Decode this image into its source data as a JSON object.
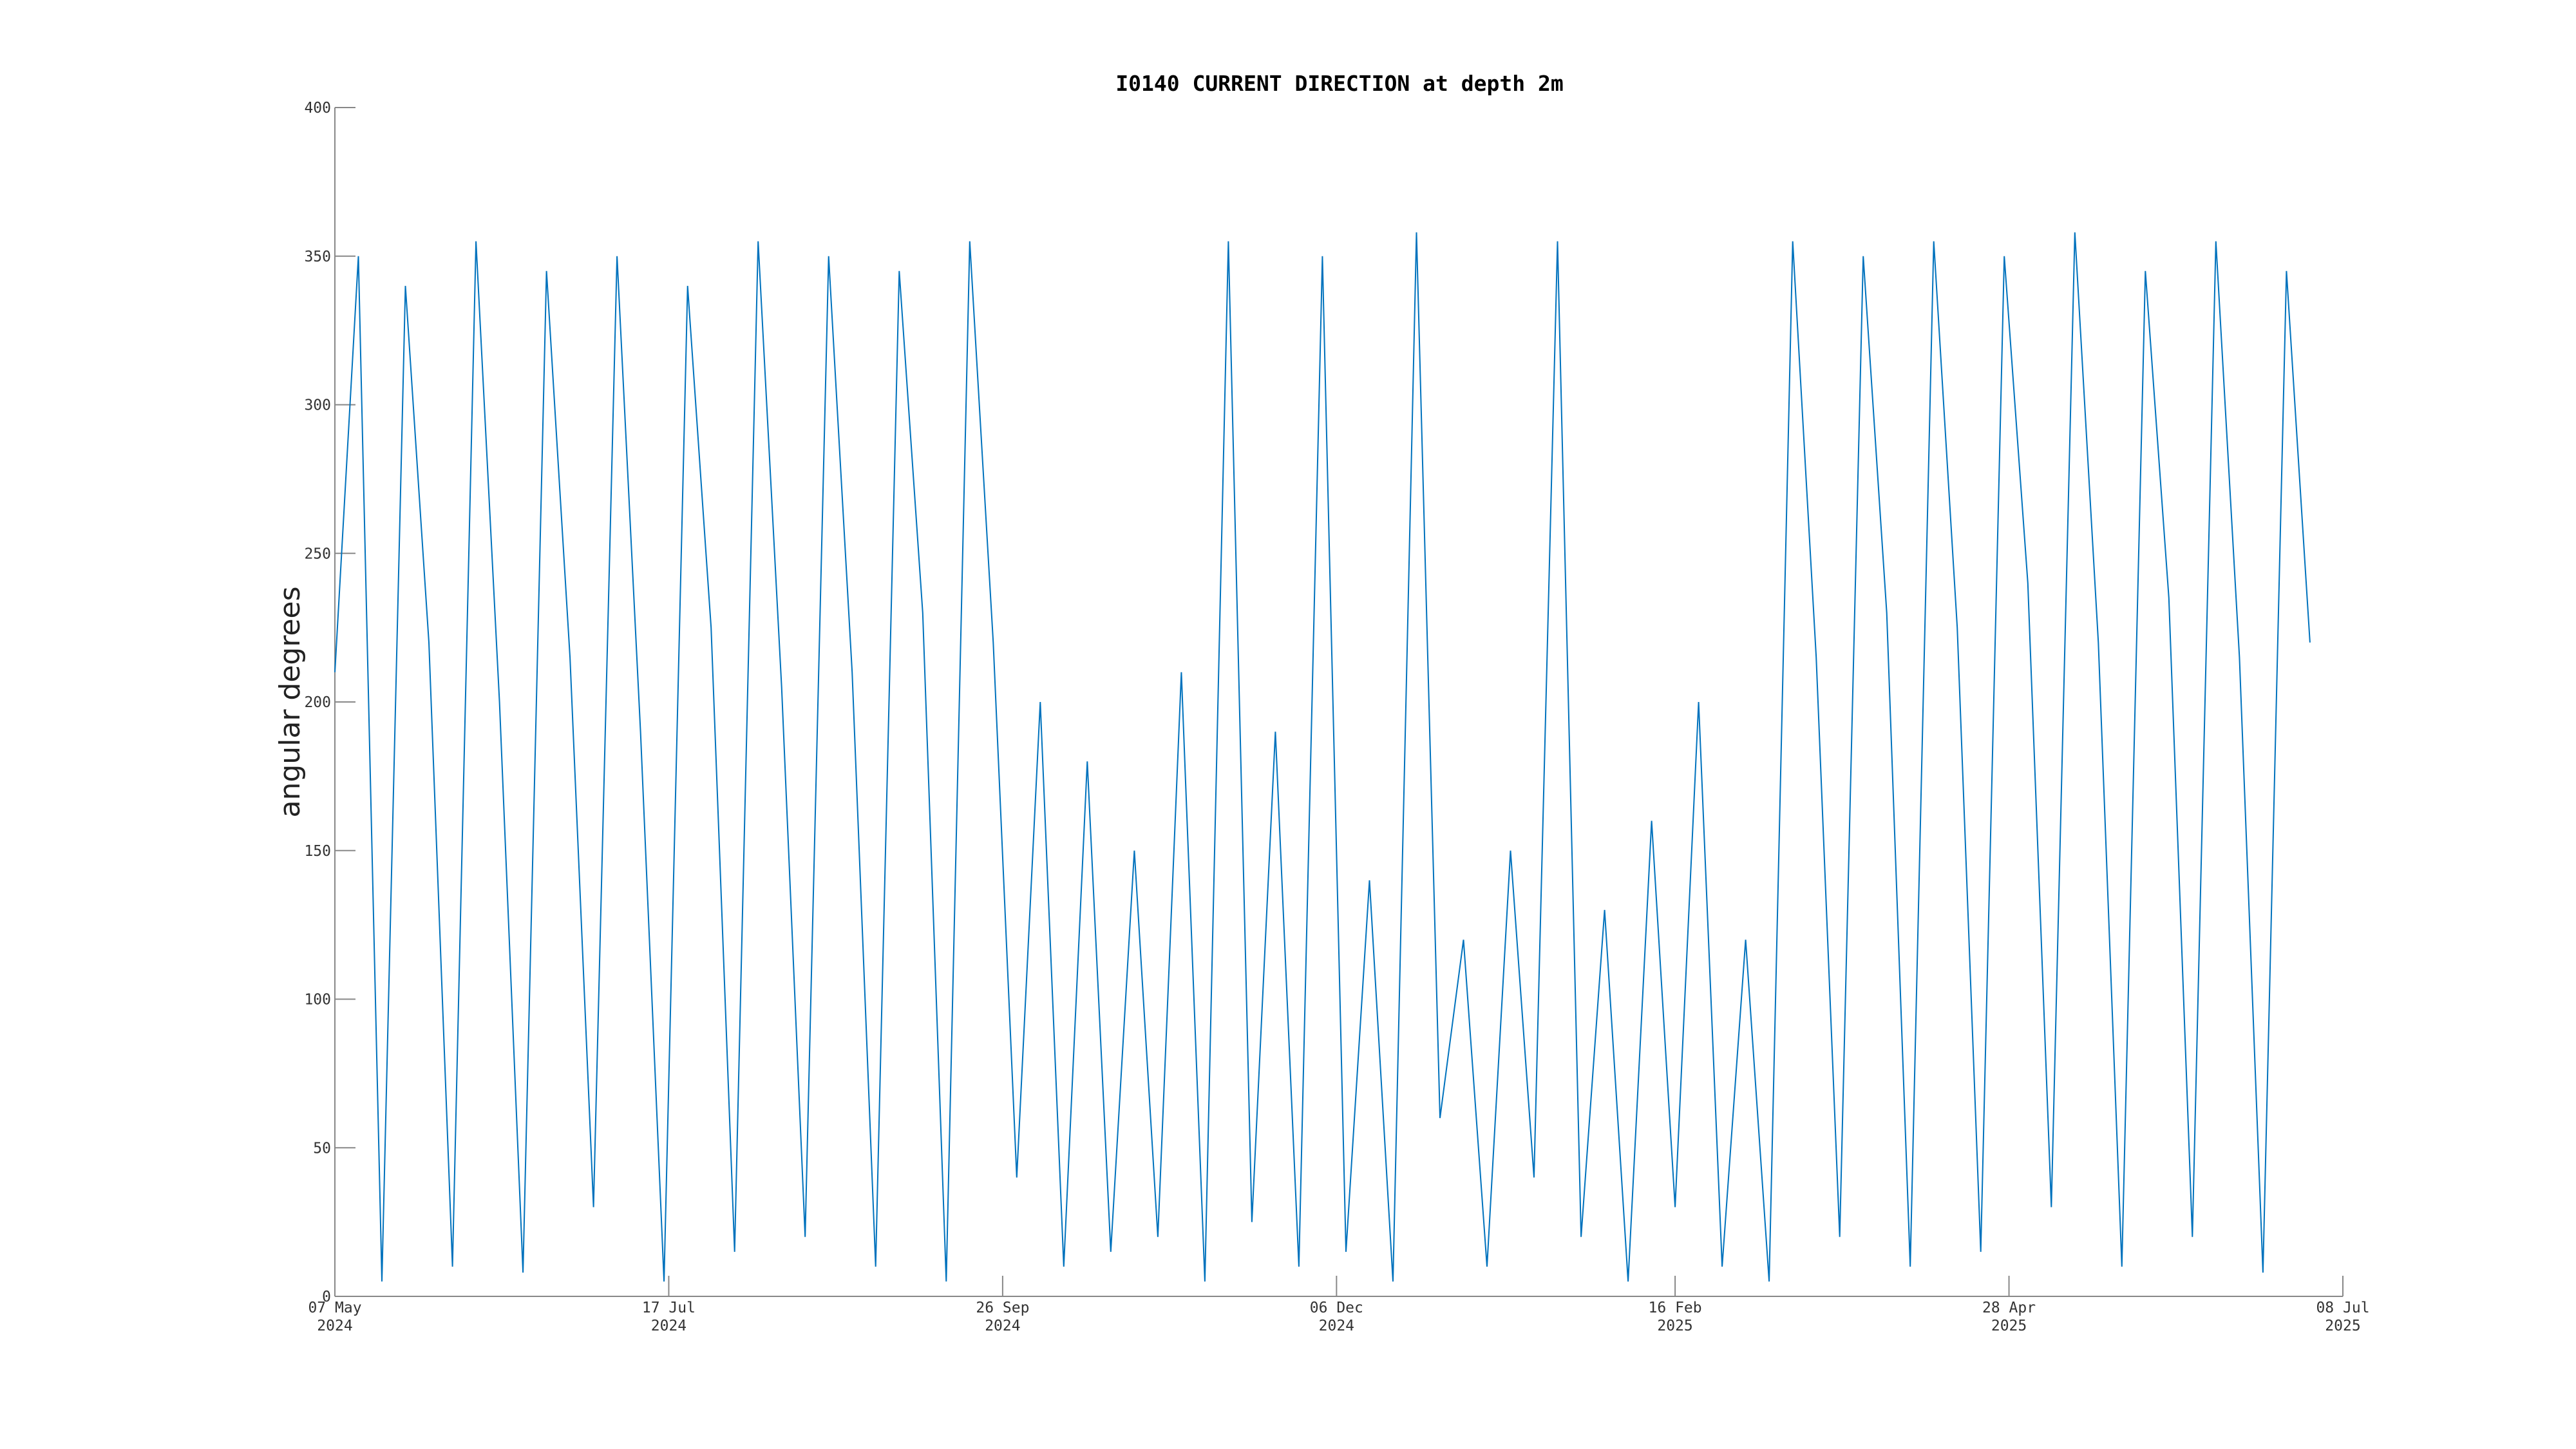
{
  "chart_data": {
    "type": "line",
    "title": "I0140 CURRENT DIRECTION at depth 2m",
    "y_label": "angular degrees",
    "x": [
      "2024-05-07",
      "2024-05-12",
      "2024-05-17",
      "2024-05-22",
      "2024-05-27",
      "2024-06-01",
      "2024-06-06",
      "2024-06-11",
      "2024-06-16",
      "2024-06-21",
      "2024-06-26",
      "2024-07-01",
      "2024-07-06",
      "2024-07-11",
      "2024-07-16",
      "2024-07-21",
      "2024-07-26",
      "2024-07-31",
      "2024-08-05",
      "2024-08-10",
      "2024-08-15",
      "2024-08-20",
      "2024-08-25",
      "2024-08-30",
      "2024-09-04",
      "2024-09-09",
      "2024-09-14",
      "2024-09-19",
      "2024-09-24",
      "2024-09-29",
      "2024-10-04",
      "2024-10-09",
      "2024-10-14",
      "2024-10-19",
      "2024-10-24",
      "2024-10-29",
      "2024-11-03",
      "2024-11-08",
      "2024-11-13",
      "2024-11-18",
      "2024-11-23",
      "2024-11-28",
      "2024-12-03",
      "2024-12-08",
      "2024-12-13",
      "2024-12-18",
      "2024-12-23",
      "2024-12-28",
      "2025-01-02",
      "2025-01-07",
      "2025-01-12",
      "2025-01-17",
      "2025-01-22",
      "2025-01-27",
      "2025-02-01",
      "2025-02-06",
      "2025-02-11",
      "2025-02-16",
      "2025-02-21",
      "2025-02-26",
      "2025-03-03",
      "2025-03-08",
      "2025-03-13",
      "2025-03-18",
      "2025-03-23",
      "2025-03-28",
      "2025-04-02",
      "2025-04-07",
      "2025-04-12",
      "2025-04-17",
      "2025-04-22",
      "2025-04-27",
      "2025-05-02",
      "2025-05-07",
      "2025-05-12",
      "2025-05-17",
      "2025-05-22",
      "2025-05-27",
      "2025-06-01",
      "2025-06-06",
      "2025-06-11",
      "2025-06-16",
      "2025-06-21",
      "2025-06-26",
      "2025-07-01"
    ],
    "series": [
      {
        "name": "current direction",
        "color": "#0072bd",
        "values": [
          210,
          350,
          5,
          340,
          220,
          10,
          355,
          200,
          8,
          345,
          215,
          30,
          350,
          190,
          5,
          340,
          225,
          15,
          355,
          205,
          20,
          350,
          210,
          10,
          345,
          230,
          5,
          355,
          220,
          40,
          200,
          10,
          180,
          15,
          150,
          20,
          210,
          5,
          355,
          25,
          190,
          10,
          350,
          15,
          140,
          5,
          358,
          60,
          120,
          10,
          150,
          40,
          355,
          20,
          130,
          5,
          160,
          30,
          200,
          10,
          120,
          5,
          355,
          215,
          20,
          350,
          230,
          10,
          355,
          225,
          15,
          350,
          240,
          30,
          358,
          220,
          10,
          345,
          235,
          20,
          355,
          215,
          8,
          345,
          220
        ]
      }
    ],
    "xlim": [
      "2024-05-07",
      "2025-07-08"
    ],
    "xticks": [
      {
        "value": "2024-05-07",
        "label": "07 May\n2024"
      },
      {
        "value": "2024-07-17",
        "label": "17 Jul\n2024"
      },
      {
        "value": "2024-09-26",
        "label": "26 Sep\n2024"
      },
      {
        "value": "2024-12-06",
        "label": "06 Dec\n2024"
      },
      {
        "value": "2025-02-16",
        "label": "16 Feb\n2025"
      },
      {
        "value": "2025-04-28",
        "label": "28 Apr\n2025"
      },
      {
        "value": "2025-07-08",
        "label": "08 Jul\n2025"
      }
    ],
    "ylim": [
      0,
      400
    ],
    "yticks": [
      0,
      50,
      100,
      150,
      200,
      250,
      300,
      350,
      400
    ]
  }
}
